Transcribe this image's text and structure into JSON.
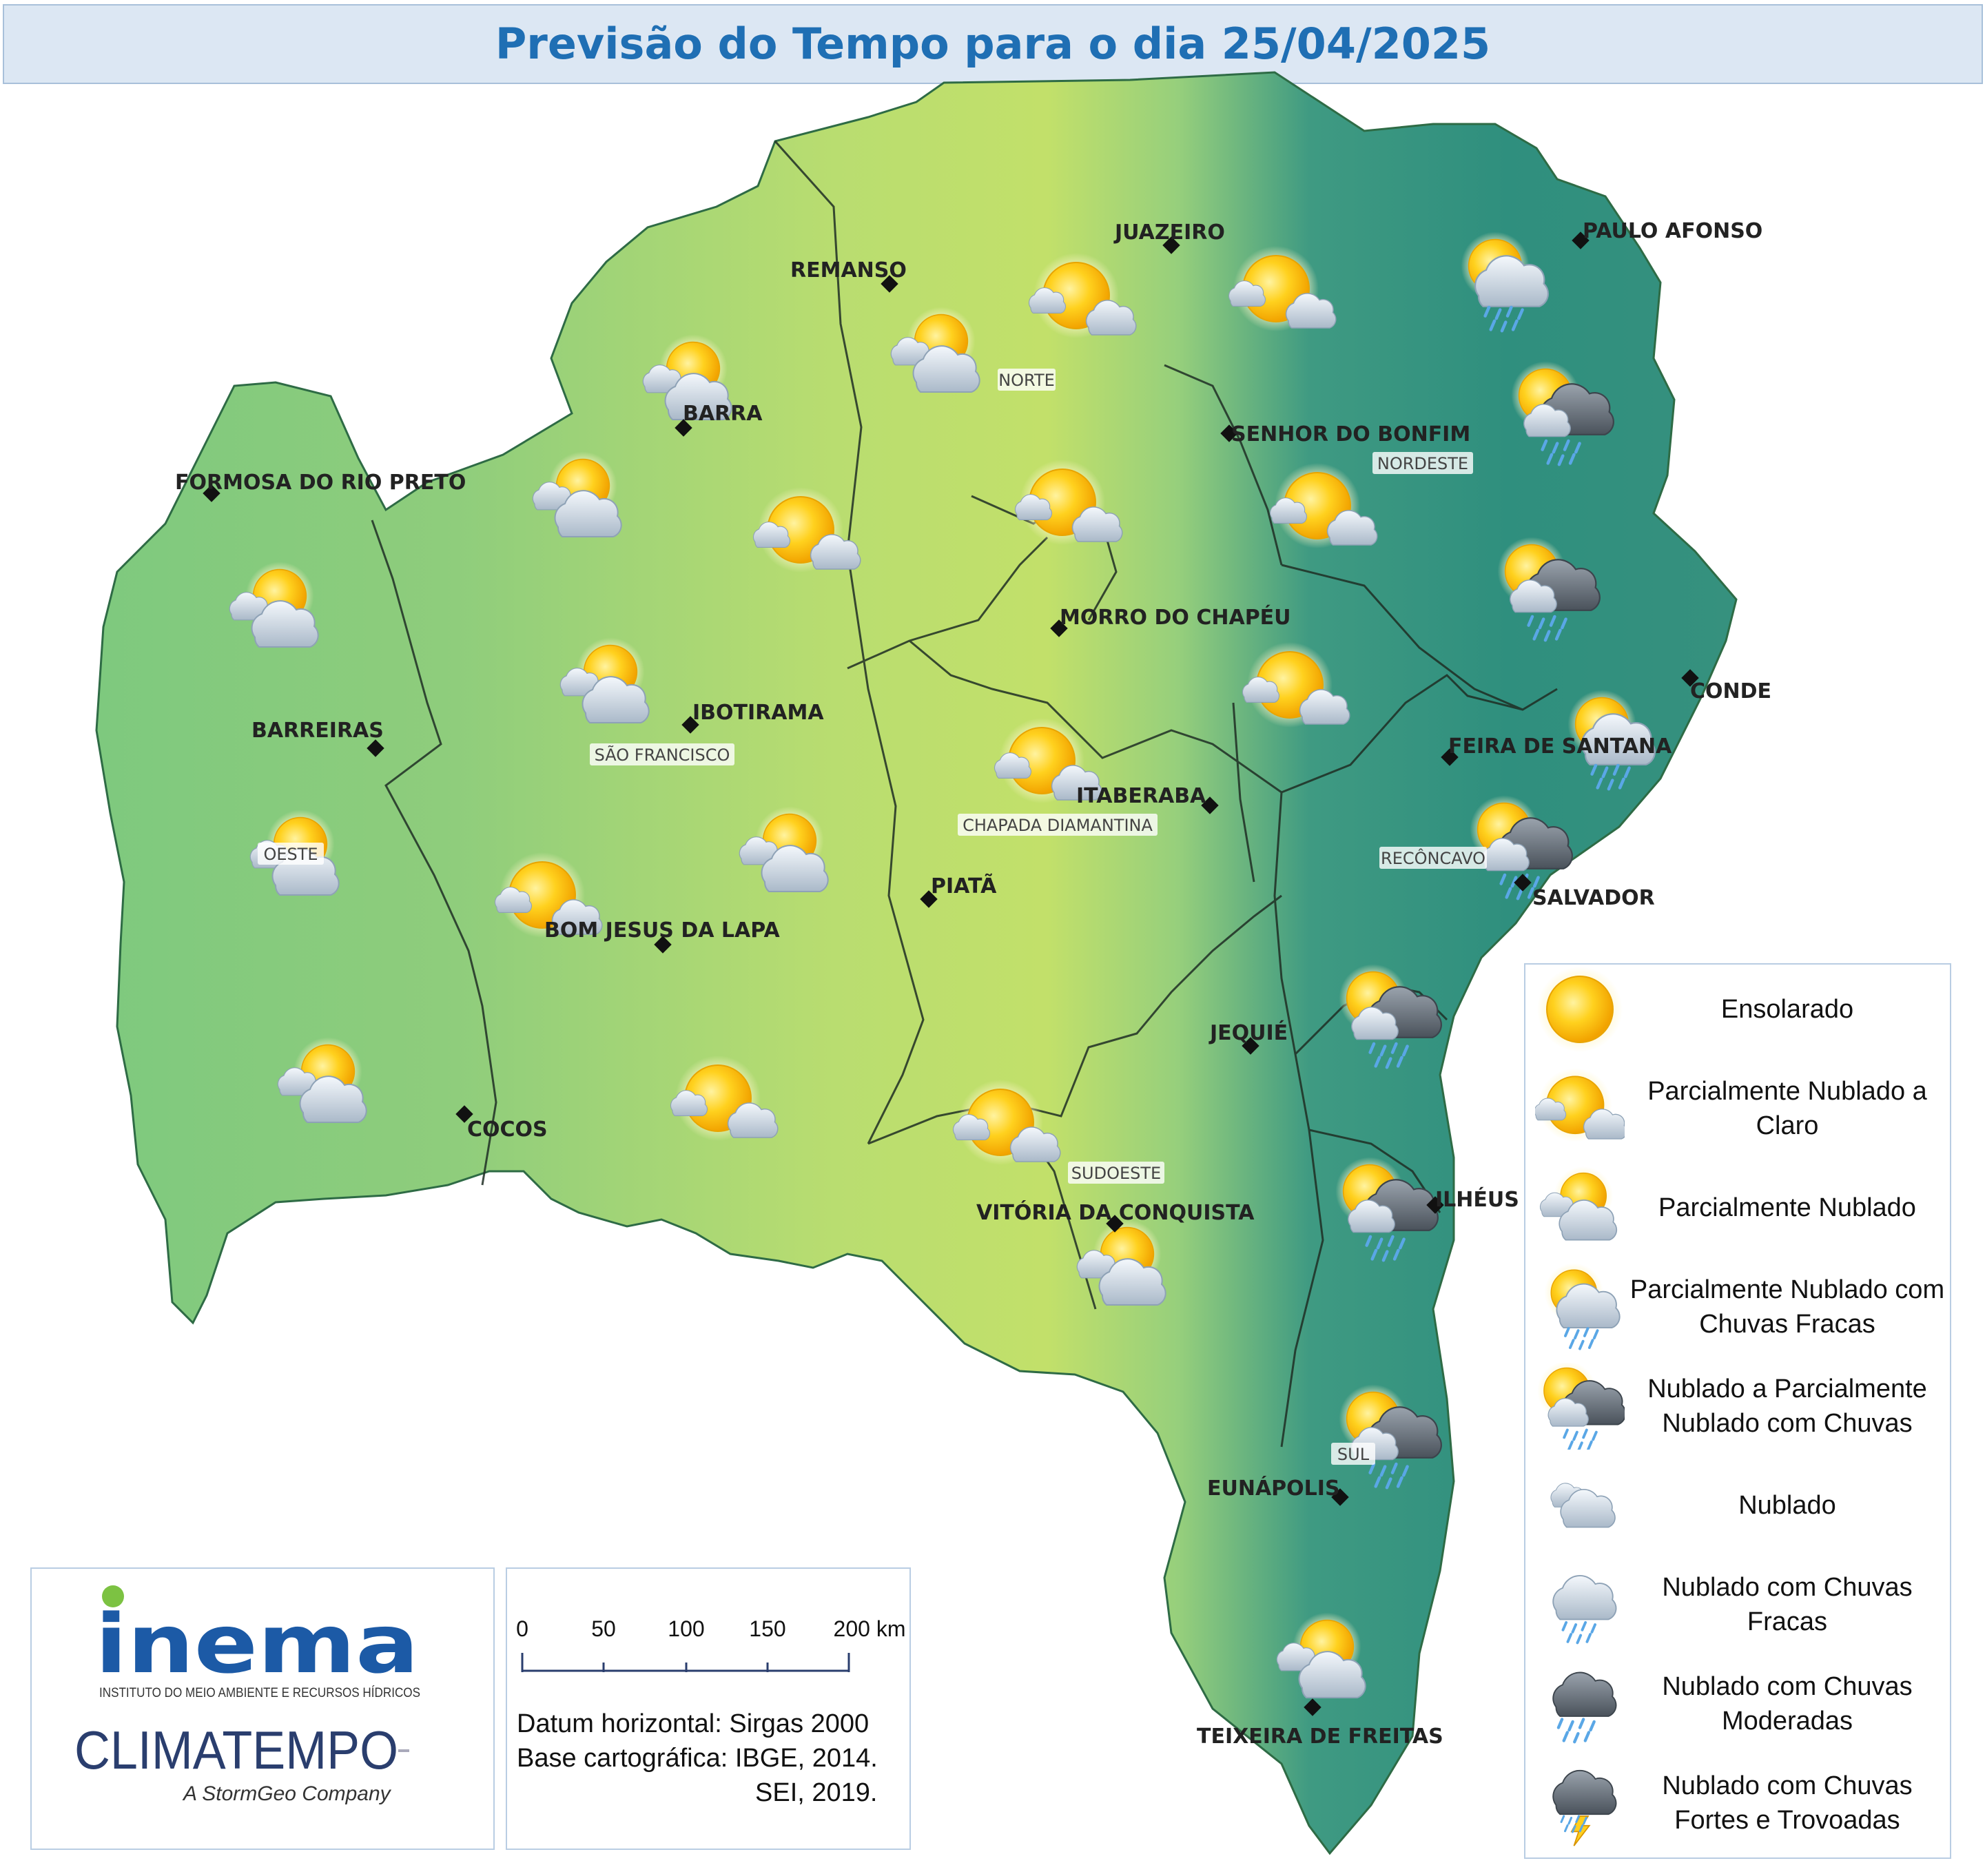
{
  "title": "Previsão do Tempo para o dia 25/04/2025",
  "colors": {
    "sunny_region": "#c2e06a",
    "inland_region": "#86c97c",
    "coastal_region": "#2f8f7e",
    "label_text": "#222222",
    "title_text": "#1f6fb4"
  },
  "cities": [
    {
      "name": "PAULO AFONSO"
    },
    {
      "name": "JUAZEIRO"
    },
    {
      "name": "REMANSO"
    },
    {
      "name": "BARRA"
    },
    {
      "name": "SENHOR DO BONFIM"
    },
    {
      "name": "FORMOSA DO RIO PRETO"
    },
    {
      "name": "MORRO DO CHAPÉU"
    },
    {
      "name": "CONDE"
    },
    {
      "name": "IBOTIRAMA"
    },
    {
      "name": "FEIRA DE SANTANA"
    },
    {
      "name": "BARREIRAS"
    },
    {
      "name": "ITABERABA"
    },
    {
      "name": "SALVADOR"
    },
    {
      "name": "PIATÃ"
    },
    {
      "name": "BOM JESUS DA LAPA"
    },
    {
      "name": "JEQUIÉ"
    },
    {
      "name": "COCOS"
    },
    {
      "name": "ILHÉUS"
    },
    {
      "name": "VITÓRIA DA CONQUISTA"
    },
    {
      "name": "EUNÁPOLIS"
    },
    {
      "name": "TEIXEIRA DE FREITAS"
    }
  ],
  "regions": [
    {
      "name": "NORTE"
    },
    {
      "name": "NORDESTE"
    },
    {
      "name": "SÃO FRANCISCO"
    },
    {
      "name": "CHAPADA DIAMANTINA"
    },
    {
      "name": "OESTE"
    },
    {
      "name": "RECÔNCAVO"
    },
    {
      "name": "SUDOESTE"
    },
    {
      "name": "SUL"
    }
  ],
  "forecast_icons": [
    {
      "condition": "parcialmente-nublado-a-claro-icon"
    },
    {
      "condition": "parcialmente-nublado-a-claro-icon"
    },
    {
      "condition": "parcialmente-nublado-com-chuvas-fracas-icon"
    },
    {
      "condition": "parcialmente-nublado-icon"
    },
    {
      "condition": "parcialmente-nublado-icon"
    },
    {
      "condition": "nublado-a-parcialmente-nublado-com-chuvas-icon"
    },
    {
      "condition": "parcialmente-nublado-icon"
    },
    {
      "condition": "parcialmente-nublado-a-claro-icon"
    },
    {
      "condition": "parcialmente-nublado-a-claro-icon"
    },
    {
      "condition": "parcialmente-nublado-a-claro-icon"
    },
    {
      "condition": "parcialmente-nublado-icon"
    },
    {
      "condition": "nublado-a-parcialmente-nublado-com-chuvas-icon"
    },
    {
      "condition": "parcialmente-nublado-icon"
    },
    {
      "condition": "parcialmente-nublado-a-claro-icon"
    },
    {
      "condition": "parcialmente-nublado-com-chuvas-fracas-icon"
    },
    {
      "condition": "parcialmente-nublado-a-claro-icon"
    },
    {
      "condition": "parcialmente-nublado-icon"
    },
    {
      "condition": "parcialmente-nublado-icon"
    },
    {
      "condition": "nublado-a-parcialmente-nublado-com-chuvas-icon"
    },
    {
      "condition": "parcialmente-nublado-a-claro-icon"
    },
    {
      "condition": "parcialmente-nublado-icon"
    },
    {
      "condition": "parcialmente-nublado-a-claro-icon"
    },
    {
      "condition": "parcialmente-nublado-a-claro-icon"
    },
    {
      "condition": "nublado-a-parcialmente-nublado-com-chuvas-icon"
    },
    {
      "condition": "parcialmente-nublado-icon"
    },
    {
      "condition": "nublado-a-parcialmente-nublado-com-chuvas-icon"
    },
    {
      "condition": "nublado-a-parcialmente-nublado-com-chuvas-icon"
    },
    {
      "condition": "parcialmente-nublado-icon"
    }
  ],
  "legend": [
    {
      "label": "Ensolarado",
      "icon": "ensolarado-icon"
    },
    {
      "label": "Parcialmente Nublado a Claro",
      "icon": "parcialmente-nublado-a-claro-icon"
    },
    {
      "label": "Parcialmente Nublado",
      "icon": "parcialmente-nublado-icon"
    },
    {
      "label": "Parcialmente Nublado com Chuvas Fracas",
      "icon": "parcialmente-nublado-com-chuvas-fracas-icon"
    },
    {
      "label": "Nublado a Parcialmente Nublado com Chuvas",
      "icon": "nublado-a-parcialmente-nublado-com-chuvas-icon"
    },
    {
      "label": "Nublado",
      "icon": "nublado-icon"
    },
    {
      "label": "Nublado com Chuvas Fracas",
      "icon": "nublado-com-chuvas-fracas-icon"
    },
    {
      "label": "Nublado com Chuvas Moderadas",
      "icon": "nublado-com-chuvas-moderadas-icon"
    },
    {
      "label": "Nublado com Chuvas Fortes e Trovoadas",
      "icon": "nublado-com-chuvas-fortes-e-trovoadas-icon"
    }
  ],
  "scale": {
    "ticks": [
      "0",
      "50",
      "100",
      "150",
      "200 km"
    ]
  },
  "credits": {
    "datum": "Datum horizontal: Sirgas 2000",
    "base": "Base cartográfica: IBGE, 2014.",
    "sei": "SEI, 2019."
  },
  "logos": {
    "inema_name": "inema",
    "inema_subtitle": "INSTITUTO DO MEIO AMBIENTE E RECURSOS HÍDRICOS",
    "climatempo_name": "CLIMATEMPO",
    "climatempo_tagline": "A StormGeo Company"
  }
}
